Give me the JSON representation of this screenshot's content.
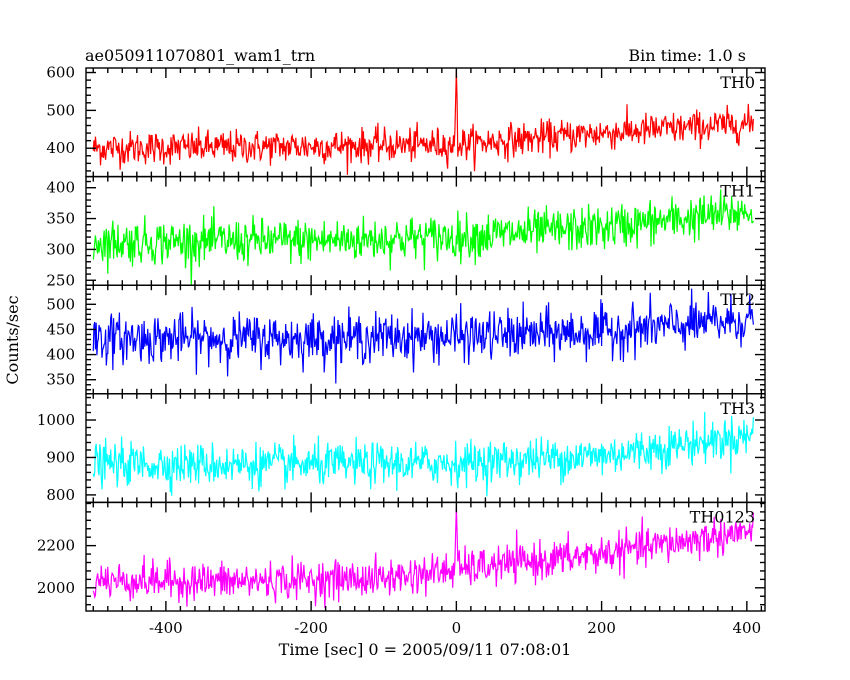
{
  "header": {
    "title": "ae050911070801_wam1_trn",
    "bin_time": "Bin time: 1.0 s"
  },
  "chart_data": {
    "type": "line",
    "xlabel": "Time [sec] 0 = 2005/09/11 07:08:01",
    "ylabel": "Counts/sec",
    "xlim": [
      -510,
      425
    ],
    "xticks": [
      -400,
      -200,
      0,
      200,
      400
    ],
    "x_step": 1.0,
    "x_range": [
      -500,
      409
    ],
    "panels": [
      {
        "name": "TH0",
        "color": "#ff0000",
        "ylim": [
          325,
          612
        ],
        "yticks": [
          400,
          500,
          600
        ],
        "baseline": [
          [
            -500,
            400
          ],
          [
            -200,
            405
          ],
          [
            0,
            410
          ],
          [
            100,
            425
          ],
          [
            200,
            440
          ],
          [
            409,
            465
          ]
        ],
        "noise_sd": 22,
        "spike": {
          "x": 0,
          "peak": 605
        }
      },
      {
        "name": "TH1",
        "color": "#00ff00",
        "ylim": [
          242,
          418
        ],
        "yticks": [
          250,
          300,
          350,
          400
        ],
        "baseline": [
          [
            -500,
            312
          ],
          [
            -200,
            314
          ],
          [
            0,
            320
          ],
          [
            200,
            335
          ],
          [
            409,
            362
          ]
        ],
        "noise_sd": 18
      },
      {
        "name": "TH2",
        "color": "#0000ff",
        "ylim": [
          322,
          538
        ],
        "yticks": [
          350,
          400,
          450,
          500
        ],
        "baseline": [
          [
            -500,
            432
          ],
          [
            -200,
            432
          ],
          [
            0,
            436
          ],
          [
            200,
            445
          ],
          [
            409,
            470
          ]
        ],
        "noise_sd": 24
      },
      {
        "name": "TH3",
        "color": "#00ffff",
        "ylim": [
          780,
          1070
        ],
        "yticks": [
          800,
          900,
          1000
        ],
        "baseline": [
          [
            -500,
            883
          ],
          [
            -200,
            880
          ],
          [
            0,
            885
          ],
          [
            200,
            905
          ],
          [
            409,
            960
          ]
        ],
        "noise_sd": 28
      },
      {
        "name": "TH0123",
        "color": "#ff00ff",
        "ylim": [
          1890,
          2405
        ],
        "yticks": [
          2000,
          2200
        ],
        "baseline": [
          [
            -500,
            2035
          ],
          [
            -300,
            2030
          ],
          [
            -100,
            2045
          ],
          [
            0,
            2085
          ],
          [
            200,
            2160
          ],
          [
            409,
            2270
          ]
        ],
        "noise_sd": 45,
        "spike": {
          "x": 0,
          "peak": 2380
        }
      }
    ]
  }
}
